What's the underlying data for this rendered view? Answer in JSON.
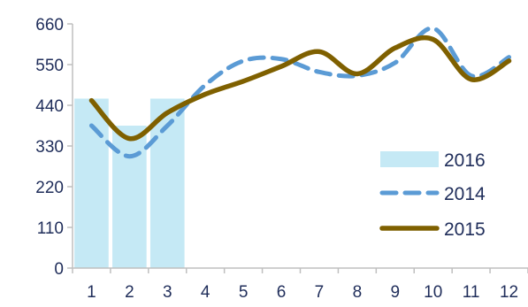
{
  "chart_data": {
    "type": "bar+line",
    "categories": [
      "1",
      "2",
      "3",
      "4",
      "5",
      "6",
      "7",
      "8",
      "9",
      "10",
      "11",
      "12"
    ],
    "y_ticks": [
      "0",
      "110",
      "220",
      "330",
      "440",
      "550",
      "660"
    ],
    "ylim": [
      0,
      660
    ],
    "grid": false,
    "legend_position": "right",
    "series": [
      {
        "name": "2016",
        "kind": "bar",
        "color": "#c5e9f5",
        "values": [
          458,
          385,
          458,
          null,
          null,
          null,
          null,
          null,
          null,
          null,
          null,
          null
        ]
      },
      {
        "name": "2014",
        "kind": "line-dashed",
        "color": "#5b9bd5",
        "values": [
          385,
          302,
          385,
          495,
          560,
          565,
          530,
          520,
          555,
          648,
          520,
          570
        ]
      },
      {
        "name": "2015",
        "kind": "line",
        "color": "#7f6000",
        "values": [
          453,
          350,
          420,
          470,
          505,
          545,
          585,
          525,
          595,
          618,
          510,
          560
        ]
      }
    ]
  }
}
